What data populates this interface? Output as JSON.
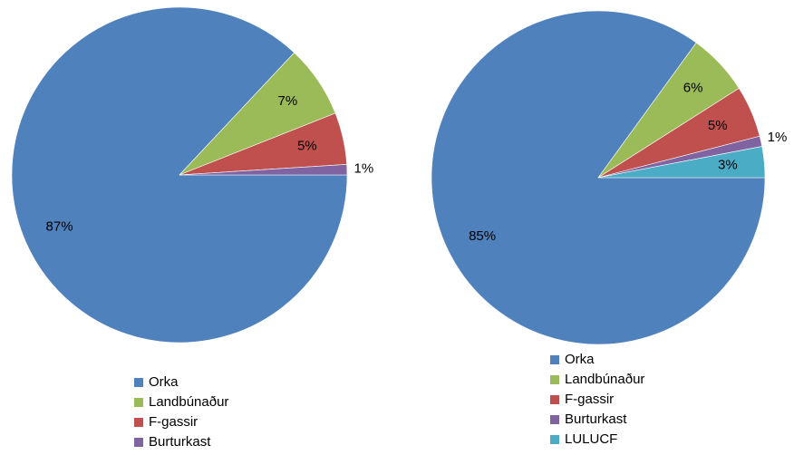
{
  "chart_data": [
    {
      "type": "pie",
      "categories": [
        "Orka",
        "Landbúnaður",
        "F-gassir",
        "Burturkast"
      ],
      "values": [
        87,
        7,
        5,
        1
      ],
      "value_labels": [
        "87%",
        "7%",
        "5%",
        "1%"
      ],
      "colors": [
        "#4f81bd",
        "#9bbb59",
        "#c0504d",
        "#8064a2"
      ],
      "legend": "bottom"
    },
    {
      "type": "pie",
      "categories": [
        "Orka",
        "Landbúnaður",
        "F-gassir",
        "Burturkast",
        "LULUCF"
      ],
      "values": [
        85,
        6,
        5,
        1,
        3
      ],
      "value_labels": [
        "85%",
        "6%",
        "5%",
        "1%",
        "3%"
      ],
      "colors": [
        "#4f81bd",
        "#9bbb59",
        "#c0504d",
        "#8064a2",
        "#4bacc6"
      ],
      "legend": "bottom"
    }
  ]
}
